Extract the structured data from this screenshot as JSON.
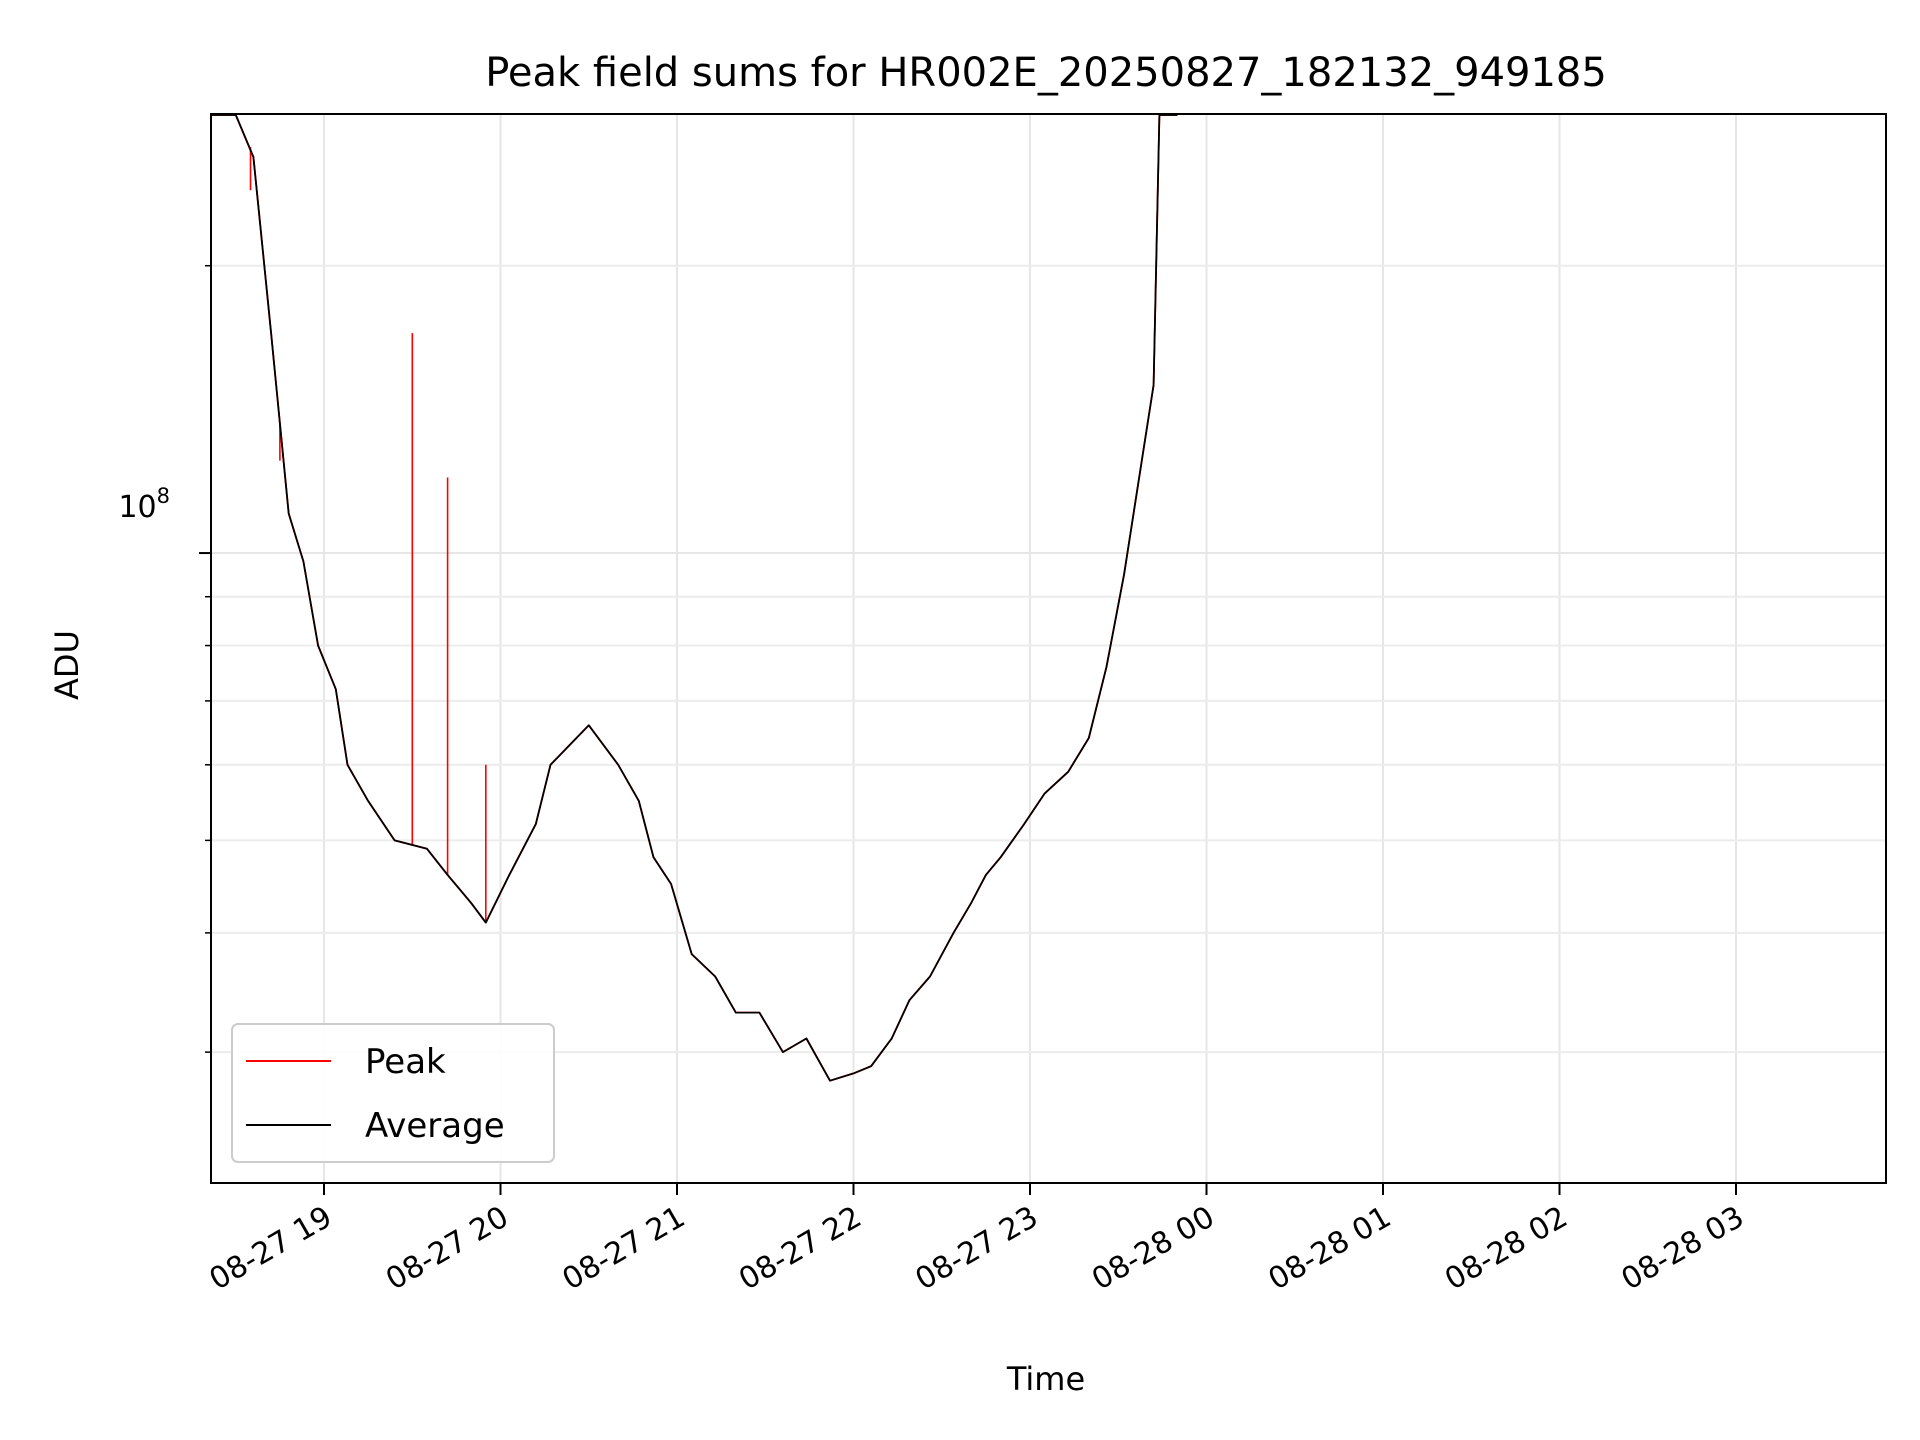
{
  "chart_data": {
    "type": "line",
    "title": "Peak field sums for HR002E_20250827_182132_949185",
    "xlabel": "Time",
    "ylabel": "ADU",
    "y_scale": "log",
    "y_tick_label": "10",
    "y_tick_exponent": "8",
    "x_tick_labels": [
      "08-27 19",
      "08-27 20",
      "08-27 21",
      "08-27 22",
      "08-27 23",
      "08-28 00",
      "08-28 01",
      "08-28 02",
      "08-28 03"
    ],
    "grid": true,
    "legend_position": "lower-left",
    "series": [
      {
        "name": "Peak",
        "color": "#ff0000",
        "points": [
          [
            "08-27 18:22",
            300000000
          ],
          [
            "08-27 18:30",
            300000000
          ],
          [
            "08-27 18:36",
            260000000
          ],
          [
            "08-27 18:42",
            170000000
          ],
          [
            "08-27 18:48",
            110000000
          ],
          [
            "08-27 18:53",
            98000000
          ],
          [
            "08-27 18:58",
            80000000
          ],
          [
            "08-27 19:04",
            72000000
          ],
          [
            "08-27 19:08",
            60000000
          ],
          [
            "08-27 19:15",
            55000000
          ],
          [
            "08-27 19:24",
            50000000
          ],
          [
            "08-27 19:35",
            49000000
          ],
          [
            "08-27 19:42",
            46000000
          ],
          [
            "08-27 19:50",
            43000000
          ],
          [
            "08-27 19:55",
            41000000
          ],
          [
            "08-27 20:03",
            46000000
          ],
          [
            "08-27 20:12",
            52000000
          ],
          [
            "08-27 20:17",
            60000000
          ],
          [
            "08-27 20:30",
            66000000
          ],
          [
            "08-27 20:40",
            60000000
          ],
          [
            "08-27 20:47",
            55000000
          ],
          [
            "08-27 20:52",
            48000000
          ],
          [
            "08-27 20:58",
            45000000
          ],
          [
            "08-27 21:05",
            38000000
          ],
          [
            "08-27 21:13",
            36000000
          ],
          [
            "08-27 21:20",
            33000000
          ],
          [
            "08-27 21:28",
            33000000
          ],
          [
            "08-27 21:36",
            30000000
          ],
          [
            "08-27 21:44",
            31000000
          ],
          [
            "08-27 21:52",
            28000000
          ],
          [
            "08-27 22:00",
            28500000
          ],
          [
            "08-27 22:06",
            29000000
          ],
          [
            "08-27 22:13",
            31000000
          ],
          [
            "08-27 22:19",
            34000000
          ],
          [
            "08-27 22:26",
            36000000
          ],
          [
            "08-27 22:34",
            40000000
          ],
          [
            "08-27 22:40",
            43000000
          ],
          [
            "08-27 22:45",
            46000000
          ],
          [
            "08-27 22:50",
            48000000
          ],
          [
            "08-27 22:58",
            52000000
          ],
          [
            "08-27 23:05",
            56000000
          ],
          [
            "08-27 23:13",
            59000000
          ],
          [
            "08-27 23:20",
            64000000
          ],
          [
            "08-27 23:26",
            76000000
          ],
          [
            "08-27 23:32",
            95000000
          ],
          [
            "08-27 23:38",
            125000000
          ],
          [
            "08-27 23:42",
            150000000
          ],
          [
            "08-27 23:44",
            300000000
          ],
          [
            "08-27 23:50",
            300000000
          ]
        ],
        "spikes": [
          [
            "08-27 18:35",
            240000000
          ],
          [
            "08-27 18:45",
            125000000
          ],
          [
            "08-27 19:30",
            170000000
          ],
          [
            "08-27 19:42",
            120000000
          ],
          [
            "08-27 19:55",
            60000000
          ]
        ]
      },
      {
        "name": "Average",
        "color": "#000000",
        "points": [
          [
            "08-27 18:22",
            300000000
          ],
          [
            "08-27 18:30",
            300000000
          ],
          [
            "08-27 18:36",
            260000000
          ],
          [
            "08-27 18:42",
            170000000
          ],
          [
            "08-27 18:48",
            110000000
          ],
          [
            "08-27 18:53",
            98000000
          ],
          [
            "08-27 18:58",
            80000000
          ],
          [
            "08-27 19:04",
            72000000
          ],
          [
            "08-27 19:08",
            60000000
          ],
          [
            "08-27 19:15",
            55000000
          ],
          [
            "08-27 19:24",
            50000000
          ],
          [
            "08-27 19:35",
            49000000
          ],
          [
            "08-27 19:42",
            46000000
          ],
          [
            "08-27 19:50",
            43000000
          ],
          [
            "08-27 19:55",
            41000000
          ],
          [
            "08-27 20:03",
            46000000
          ],
          [
            "08-27 20:12",
            52000000
          ],
          [
            "08-27 20:17",
            60000000
          ],
          [
            "08-27 20:30",
            66000000
          ],
          [
            "08-27 20:40",
            60000000
          ],
          [
            "08-27 20:47",
            55000000
          ],
          [
            "08-27 20:52",
            48000000
          ],
          [
            "08-27 20:58",
            45000000
          ],
          [
            "08-27 21:05",
            38000000
          ],
          [
            "08-27 21:13",
            36000000
          ],
          [
            "08-27 21:20",
            33000000
          ],
          [
            "08-27 21:28",
            33000000
          ],
          [
            "08-27 21:36",
            30000000
          ],
          [
            "08-27 21:44",
            31000000
          ],
          [
            "08-27 21:52",
            28000000
          ],
          [
            "08-27 22:00",
            28500000
          ],
          [
            "08-27 22:06",
            29000000
          ],
          [
            "08-27 22:13",
            31000000
          ],
          [
            "08-27 22:19",
            34000000
          ],
          [
            "08-27 22:26",
            36000000
          ],
          [
            "08-27 22:34",
            40000000
          ],
          [
            "08-27 22:40",
            43000000
          ],
          [
            "08-27 22:45",
            46000000
          ],
          [
            "08-27 22:50",
            48000000
          ],
          [
            "08-27 22:58",
            52000000
          ],
          [
            "08-27 23:05",
            56000000
          ],
          [
            "08-27 23:13",
            59000000
          ],
          [
            "08-27 23:20",
            64000000
          ],
          [
            "08-27 23:26",
            76000000
          ],
          [
            "08-27 23:32",
            95000000
          ],
          [
            "08-27 23:38",
            125000000
          ],
          [
            "08-27 23:42",
            150000000
          ],
          [
            "08-27 23:44",
            300000000
          ],
          [
            "08-27 23:50",
            300000000
          ]
        ]
      }
    ]
  }
}
